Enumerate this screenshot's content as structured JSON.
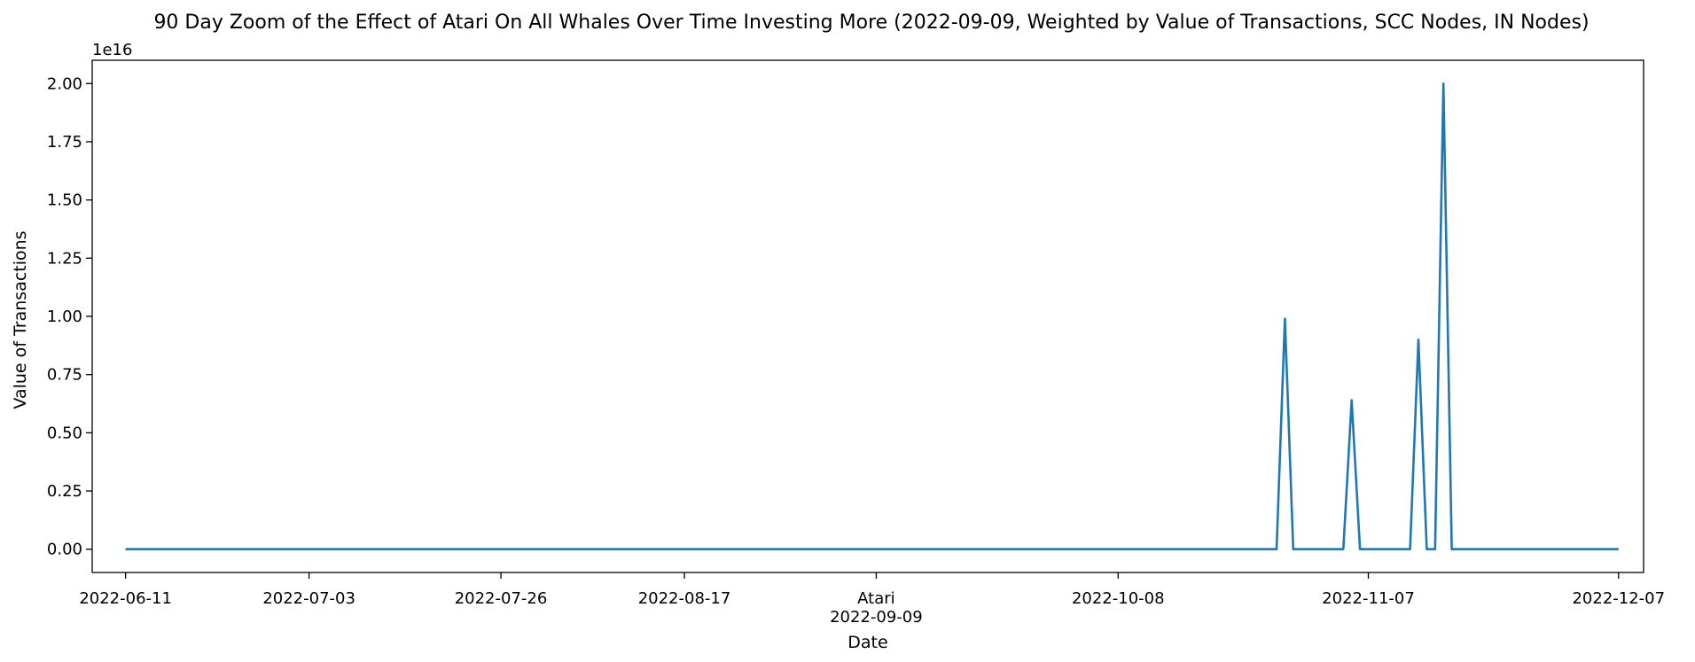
{
  "chart_data": {
    "type": "line",
    "title": "90 Day Zoom of the Effect of Atari On All Whales Over Time Investing More (2022-09-09, Weighted by Value of Transactions, SCC Nodes, IN Nodes)",
    "xlabel": "Date",
    "ylabel": "Value of Transactions",
    "y_offset_label": "1e16",
    "y_scale": 1e+16,
    "xlim": [
      "2022-06-07",
      "2022-12-10"
    ],
    "ylim": [
      -0.1,
      2.1
    ],
    "grid": false,
    "line_color": "#1f77b4",
    "y_ticks": [
      0.0,
      0.25,
      0.5,
      0.75,
      1.0,
      1.25,
      1.5,
      1.75,
      2.0
    ],
    "y_tick_labels": [
      "0.00",
      "0.25",
      "0.50",
      "0.75",
      "1.00",
      "1.25",
      "1.50",
      "1.75",
      "2.00"
    ],
    "x_ticks": [
      "2022-06-11",
      "2022-07-03",
      "2022-07-26",
      "2022-08-17",
      "2022-09-09",
      "2022-10-08",
      "2022-11-07",
      "2022-12-07"
    ],
    "x_tick_labels": [
      "2022-06-11",
      "2022-07-03",
      "2022-07-26",
      "2022-08-17",
      "2022-09-09",
      "2022-10-08",
      "2022-11-07",
      "2022-12-07"
    ],
    "annotation": {
      "label": "Atari",
      "date": "2022-09-09"
    },
    "series": [
      {
        "x": [
          "2022-06-11",
          "2022-10-27",
          "2022-10-28",
          "2022-10-29",
          "2022-11-04",
          "2022-11-05",
          "2022-11-06",
          "2022-11-12",
          "2022-11-13",
          "2022-11-14",
          "2022-11-15",
          "2022-11-16",
          "2022-11-17",
          "2022-11-18",
          "2022-12-07"
        ],
        "values": [
          0.0,
          0.0,
          0.99,
          0.0,
          0.0,
          0.64,
          0.0,
          0.0,
          0.9,
          0.0,
          0.0,
          2.0,
          0.0,
          0.0,
          0.0
        ]
      }
    ]
  }
}
